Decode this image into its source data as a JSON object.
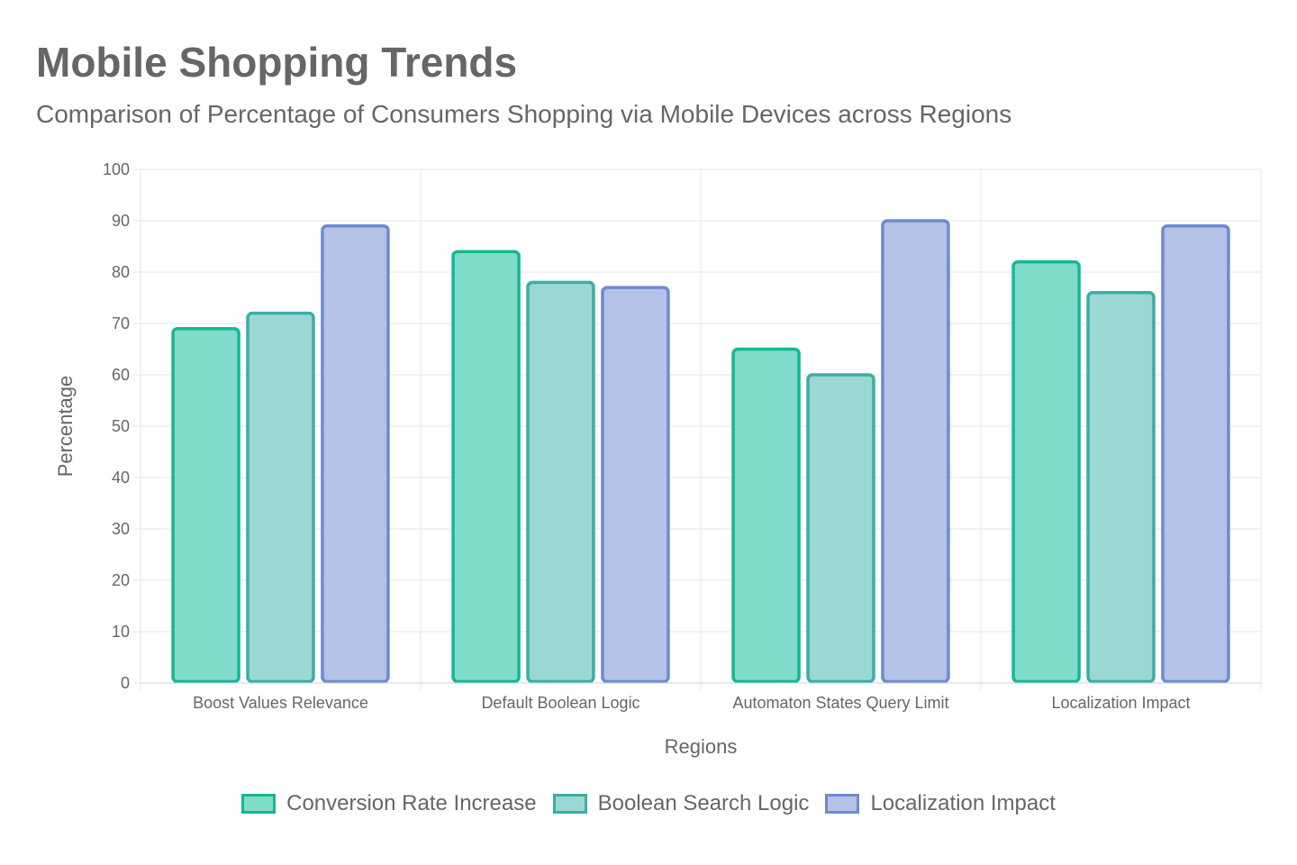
{
  "chart_data": {
    "type": "bar",
    "title": "Mobile Shopping Trends",
    "subtitle": "Comparison of Percentage of Consumers Shopping via Mobile Devices across Regions",
    "xlabel": "Regions",
    "ylabel": "Percentage",
    "ylim": [
      0,
      100
    ],
    "yticks": [
      0,
      10,
      20,
      30,
      40,
      50,
      60,
      70,
      80,
      90,
      100
    ],
    "grid": true,
    "legend_position": "bottom",
    "categories": [
      "Boost Values Relevance",
      "Default Boolean Logic",
      "Automaton States Query Limit",
      "Localization Impact"
    ],
    "series": [
      {
        "name": "Conversion Rate Increase",
        "values": [
          69,
          84,
          65,
          82
        ],
        "fill": "#80dcca",
        "stroke": "#14b892"
      },
      {
        "name": "Boolean Search Logic",
        "values": [
          72,
          78,
          60,
          76
        ],
        "fill": "#9cd8d3",
        "stroke": "#3dada4"
      },
      {
        "name": "Localization Impact",
        "values": [
          89,
          77,
          90,
          89
        ],
        "fill": "#b3c2e6",
        "stroke": "#6e8bcf"
      }
    ]
  }
}
